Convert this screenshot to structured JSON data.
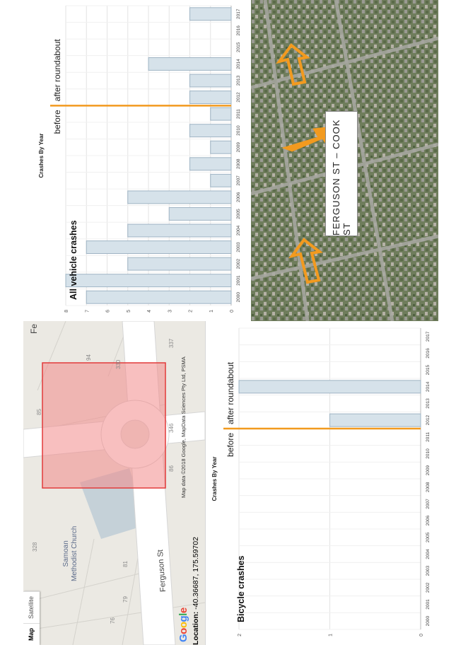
{
  "map_panel": {
    "tabs": [
      {
        "label": "Map",
        "active": true
      },
      {
        "label": "Satellite",
        "active": false
      }
    ],
    "google_logo": "Google",
    "attribution": "Map data ©2018 Google, MapData Sciences Pty Ltd, PSMA",
    "location_label": "Location:",
    "location_value": "-40.36687, 175.59702",
    "church_line1": "Samoan",
    "church_line2": "Methodist Church",
    "street_ferguson": "Ferguson St",
    "street_top": "Fe",
    "numbers": [
      "328",
      "76",
      "79",
      "81",
      "85",
      "94",
      "86",
      "346",
      "330",
      "337"
    ],
    "highlight_color": "#f28b8b"
  },
  "chart_data": [
    {
      "type": "bar",
      "title": "Crashes By Year",
      "annotation": "Bicycle crashes",
      "before_label": "before",
      "after_label": "after roundabout",
      "divider_between": [
        "2011",
        "2012"
      ],
      "categories": [
        "2000",
        "2001",
        "2002",
        "2003",
        "2004",
        "2005",
        "2006",
        "2007",
        "2008",
        "2009",
        "2010",
        "2011",
        "2012",
        "2013",
        "2014",
        "2015",
        "2016",
        "2017"
      ],
      "values": [
        0,
        0,
        0,
        0,
        0,
        0,
        0,
        0,
        0,
        0,
        0,
        0,
        1,
        0,
        2,
        0,
        0,
        0
      ],
      "ylim": [
        0,
        2
      ],
      "yticks": [
        0,
        1,
        2
      ],
      "bar_color": "#d6e2ea",
      "bar_edge": "#9fb4c4",
      "divider_color": "#f29a1f"
    },
    {
      "type": "bar",
      "title": "Crashes By Year",
      "annotation": "All vehicle crashes",
      "before_label": "before",
      "after_label": "after roundabout",
      "divider_between": [
        "2011",
        "2012"
      ],
      "categories": [
        "2000",
        "2001",
        "2002",
        "2003",
        "2004",
        "2005",
        "2006",
        "2007",
        "2008",
        "2009",
        "2010",
        "2011",
        "2012",
        "2013",
        "2014",
        "2015",
        "2016",
        "2017"
      ],
      "values": [
        7,
        8,
        5,
        7,
        5,
        3,
        5,
        1,
        2,
        1,
        2,
        1,
        2,
        2,
        4,
        0,
        0,
        2
      ],
      "ylim": [
        0,
        8
      ],
      "yticks": [
        0,
        1,
        2,
        3,
        4,
        5,
        6,
        7,
        8
      ],
      "bar_color": "#d6e2ea",
      "bar_edge": "#9fb4c4",
      "divider_color": "#f29a1f"
    }
  ],
  "satellite_panel": {
    "caption": "FERGUSON ST – COOK ST",
    "arrow_color": "#f29a1f"
  }
}
